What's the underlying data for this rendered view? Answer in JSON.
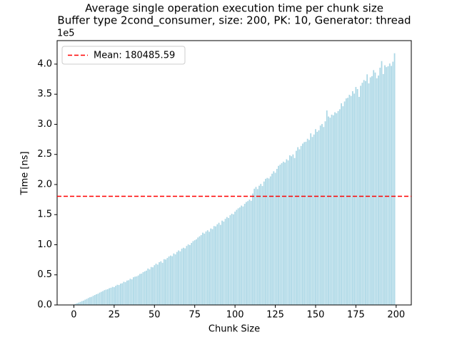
{
  "chart_data": {
    "type": "bar",
    "title": "Average single operation execution time per chunk size",
    "subtitle": "Buffer type 2cond_consumer, size: 200, PK: 10, Generator: thread",
    "xlabel": "Chunk Size",
    "ylabel": "Time [ns]",
    "y_offset_label": "1e5",
    "color": "#add8e6",
    "x": [
      0,
      1,
      2,
      3,
      4,
      5,
      6,
      7,
      8,
      9,
      10,
      11,
      12,
      13,
      14,
      15,
      16,
      17,
      18,
      19,
      20,
      21,
      22,
      23,
      24,
      25,
      26,
      27,
      28,
      29,
      30,
      31,
      32,
      33,
      34,
      35,
      36,
      37,
      38,
      39,
      40,
      41,
      42,
      43,
      44,
      45,
      46,
      47,
      48,
      49,
      50,
      51,
      52,
      53,
      54,
      55,
      56,
      57,
      58,
      59,
      60,
      61,
      62,
      63,
      64,
      65,
      66,
      67,
      68,
      69,
      70,
      71,
      72,
      73,
      74,
      75,
      76,
      77,
      78,
      79,
      80,
      81,
      82,
      83,
      84,
      85,
      86,
      87,
      88,
      89,
      90,
      91,
      92,
      93,
      94,
      95,
      96,
      97,
      98,
      99,
      100,
      101,
      102,
      103,
      104,
      105,
      106,
      107,
      108,
      109,
      110,
      111,
      112,
      113,
      114,
      115,
      116,
      117,
      118,
      119,
      120,
      121,
      122,
      123,
      124,
      125,
      126,
      127,
      128,
      129,
      130,
      131,
      132,
      133,
      134,
      135,
      136,
      137,
      138,
      139,
      140,
      141,
      142,
      143,
      144,
      145,
      146,
      147,
      148,
      149,
      150,
      151,
      152,
      153,
      154,
      155,
      156,
      157,
      158,
      159,
      160,
      161,
      162,
      163,
      164,
      165,
      166,
      167,
      168,
      169,
      170,
      171,
      172,
      173,
      174,
      175,
      176,
      177,
      178,
      179,
      180,
      181,
      182,
      183,
      184,
      185,
      186,
      187,
      188,
      189,
      190,
      191,
      192,
      193,
      194,
      195,
      196,
      197,
      198,
      199
    ],
    "values": [
      1000,
      1800,
      2800,
      3900,
      5100,
      6400,
      7200,
      8800,
      10000,
      11500,
      12800,
      13500,
      15200,
      16500,
      17800,
      18600,
      20500,
      21800,
      23000,
      24600,
      25500,
      26200,
      27800,
      28500,
      30000,
      29500,
      31800,
      33500,
      33000,
      35500,
      36000,
      38500,
      37800,
      40500,
      41000,
      43500,
      42500,
      46000,
      47000,
      47500,
      49000,
      51500,
      52000,
      54500,
      55800,
      57000,
      60500,
      59000,
      63000,
      62500,
      66000,
      68500,
      67000,
      71000,
      72500,
      70000,
      76000,
      75500,
      78000,
      80500,
      82000,
      81000,
      85500,
      84000,
      88000,
      90500,
      89000,
      93500,
      95000,
      94000,
      98000,
      100500,
      99500,
      103000,
      106000,
      107500,
      109000,
      112000,
      114000,
      116000,
      120000,
      118500,
      122000,
      124000,
      121500,
      127000,
      126000,
      131000,
      130500,
      134000,
      136500,
      133000,
      140000,
      138500,
      143000,
      146000,
      144500,
      149000,
      151500,
      150500,
      155000,
      158000,
      160500,
      162000,
      165000,
      163500,
      168000,
      171000,
      172500,
      175000,
      173000,
      185000,
      193000,
      196000,
      192500,
      198000,
      201000,
      197500,
      205000,
      209500,
      211000,
      210000,
      213500,
      218000,
      222000,
      219500,
      226000,
      231000,
      233000,
      235500,
      238000,
      236500,
      242000,
      240000,
      248500,
      247000,
      250000,
      244000,
      256000,
      262000,
      258500,
      264000,
      268000,
      270500,
      271000,
      276000,
      274000,
      285000,
      279000,
      283000,
      292000,
      287500,
      290000,
      298000,
      300500,
      295500,
      305000,
      323000,
      313000,
      311000,
      316000,
      315000,
      320000,
      318500,
      322000,
      325000,
      335000,
      330000,
      338000,
      343000,
      344000,
      349000,
      347000,
      355000,
      351000,
      362000,
      358500,
      345500,
      364000,
      369000,
      373500,
      372000,
      383000,
      368000,
      378000,
      380000,
      390000,
      386000,
      376500,
      381000,
      394000,
      405000,
      383500,
      398000,
      395000,
      396500,
      401000,
      397000,
      404000,
      418000
    ],
    "mean": 180485.59,
    "mean_label": "Mean: 180485.59",
    "mean_color": "#ff0000",
    "legend": "upper left",
    "xlim": [
      -10.39,
      209.39
    ],
    "xticks": [
      0,
      25,
      50,
      75,
      100,
      125,
      150,
      175,
      200
    ],
    "ylim": [
      0,
      439000
    ],
    "yticks": [
      {
        "value": 0,
        "label": "0.0"
      },
      {
        "value": 50000,
        "label": "0.5"
      },
      {
        "value": 100000,
        "label": "1.0"
      },
      {
        "value": 150000,
        "label": "1.5"
      },
      {
        "value": 200000,
        "label": "2.0"
      },
      {
        "value": 250000,
        "label": "2.5"
      },
      {
        "value": 300000,
        "label": "3.0"
      },
      {
        "value": 350000,
        "label": "3.5"
      },
      {
        "value": 400000,
        "label": "4.0"
      }
    ]
  }
}
